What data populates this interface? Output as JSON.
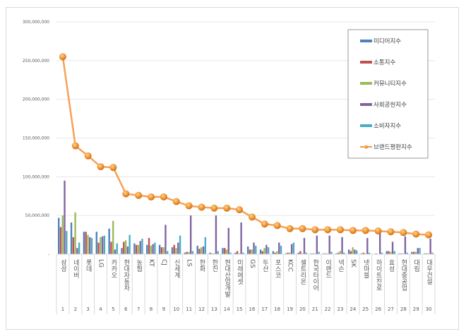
{
  "chart_data": {
    "type": "bar",
    "title": "",
    "xlabel": "",
    "ylabel": "",
    "ylim": [
      0,
      300000000
    ],
    "yticks": [
      "-",
      "50,000,000",
      "100,000,000",
      "150,000,000",
      "200,000,000",
      "250,000,000",
      "300,000,000"
    ],
    "grid": true,
    "legend_placement": "top-right",
    "ranks": [
      "1",
      "2",
      "3",
      "4",
      "5",
      "6",
      "7",
      "8",
      "9",
      "10",
      "11",
      "12",
      "13",
      "14",
      "15",
      "16",
      "17",
      "18",
      "19",
      "20",
      "21",
      "22",
      "23",
      "24",
      "25",
      "26",
      "27",
      "28",
      "29",
      "30"
    ],
    "categories": [
      "삼성",
      "네이버",
      "롯데",
      "LG",
      "카카오",
      "현대자동차",
      "농협",
      "KT",
      "CJ",
      "신세계",
      "LS",
      "한화",
      "한진",
      "현대산업개발",
      "미래에셋",
      "GS",
      "두산",
      "포스코",
      "KCC",
      "셀트리온",
      "한국타이어",
      "이랜드",
      "넥슨",
      "SK",
      "넷마블",
      "하이트진로",
      "효성",
      "현대중공업",
      "대림",
      "대우건설"
    ],
    "series": [
      {
        "name": "미디어지수",
        "type": "bar",
        "color": "#4f81bd",
        "values": [
          47000000,
          41000000,
          29000000,
          29000000,
          33000000,
          8000000,
          14000000,
          12000000,
          12000000,
          9000000,
          2000000,
          11000000,
          2000000,
          8000000,
          2000000,
          10000000,
          6000000,
          4000000,
          1000000,
          2000000,
          1000000,
          1000000,
          1000000,
          6000000,
          1000000,
          500000,
          4000000,
          1000000,
          3000000,
          1000000
        ]
      },
      {
        "name": "소통지수",
        "type": "bar",
        "color": "#c0504d",
        "values": [
          35000000,
          22000000,
          29000000,
          15000000,
          16000000,
          16000000,
          12000000,
          21000000,
          9000000,
          12000000,
          3000000,
          7000000,
          1000000,
          8000000,
          4000000,
          6000000,
          4000000,
          2000000,
          2000000,
          4000000,
          1000000,
          1000000,
          2000000,
          4000000,
          2000000,
          1000000,
          4000000,
          1000000,
          3000000,
          1000000
        ]
      },
      {
        "name": "커뮤니티지수",
        "type": "bar",
        "color": "#9bbb59",
        "values": [
          50000000,
          54000000,
          25000000,
          22000000,
          43000000,
          18000000,
          12000000,
          11000000,
          9000000,
          8000000,
          3000000,
          9000000,
          1000000,
          6000000,
          1000000,
          6000000,
          8000000,
          4000000,
          2000000,
          1000000,
          1000000,
          1000000,
          4000000,
          9000000,
          1000000,
          500000,
          3000000,
          1000000,
          3000000,
          1000000
        ]
      },
      {
        "name": "사회공헌지수",
        "type": "bar",
        "color": "#8064a2",
        "values": [
          95000000,
          8000000,
          22000000,
          23000000,
          6000000,
          10000000,
          17000000,
          13000000,
          38000000,
          15000000,
          50000000,
          10000000,
          50000000,
          34000000,
          41000000,
          15000000,
          12000000,
          15000000,
          13000000,
          21000000,
          24000000,
          24000000,
          22000000,
          6000000,
          21000000,
          29000000,
          16000000,
          23000000,
          8000000,
          20000000
        ]
      },
      {
        "name": "소비자지수",
        "type": "bar",
        "color": "#4bacc6",
        "values": [
          30000000,
          15000000,
          21000000,
          24000000,
          14000000,
          25000000,
          20000000,
          15000000,
          4000000,
          24000000,
          4000000,
          22000000,
          4000000,
          2000000,
          2000000,
          11000000,
          9000000,
          11000000,
          15000000,
          2000000,
          3000000,
          3000000,
          2000000,
          5000000,
          2000000,
          2000000,
          4000000,
          2000000,
          8000000,
          2000000
        ]
      },
      {
        "name": "브랜드평판지수",
        "type": "line",
        "color": "#f79646",
        "values": [
          255000000,
          140000000,
          127000000,
          113000000,
          112000000,
          78000000,
          76000000,
          74000000,
          74000000,
          68000000,
          62500000,
          60700000,
          59500000,
          59500000,
          57400000,
          48000000,
          39000000,
          37000000,
          33000000,
          33000000,
          31600000,
          31600000,
          31600000,
          30700000,
          30700000,
          30000000,
          29000000,
          28000000,
          26000000,
          25000000
        ]
      }
    ]
  }
}
